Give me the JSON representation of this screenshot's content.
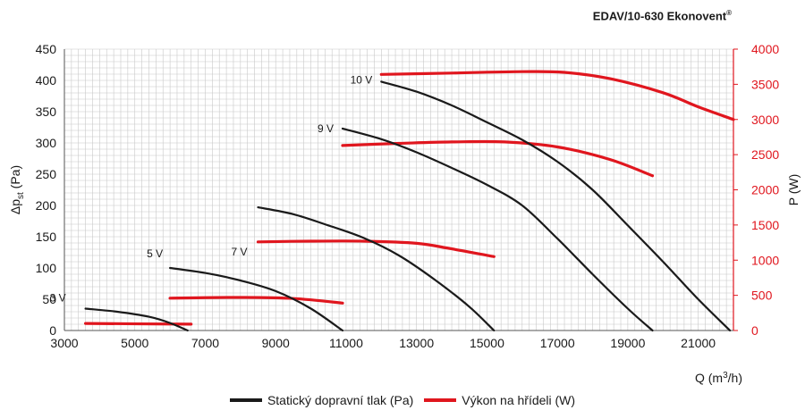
{
  "title": "EDAV/10-630 Ekonovent",
  "title_mark": "®",
  "colors": {
    "pressure": "#1a1a1a",
    "power": "#e0161e",
    "grid": "#c8c8c8",
    "axis_right": "#e0161e"
  },
  "chart_data": {
    "type": "line",
    "title": "EDAV/10-630 Ekonovent®",
    "xlabel_main": "Q (m",
    "xlabel_sup": "3",
    "xlabel_end": "/h)",
    "ylabel_left_main": "Δp",
    "ylabel_left_sub": "st",
    "ylabel_left_end": " (Pa)",
    "ylabel_right": "P (W)",
    "xlim": [
      3000,
      22000
    ],
    "ylim_left": [
      0,
      450
    ],
    "ylim_right": [
      0,
      4000
    ],
    "grid": true,
    "x_ticks": [
      3000,
      5000,
      7000,
      9000,
      11000,
      13000,
      15000,
      17000,
      19000,
      21000
    ],
    "x_tick_labels": [
      "3000",
      "5000",
      "7000",
      "9000",
      "11000",
      "13000",
      "15000",
      "17000",
      "19000",
      "21000"
    ],
    "y_left_ticks": [
      0,
      50,
      100,
      150,
      200,
      250,
      300,
      350,
      400,
      450
    ],
    "y_left_tick_labels": [
      "0",
      "50",
      "100",
      "150",
      "200",
      "250",
      "300",
      "350",
      "400",
      "450"
    ],
    "y_right_ticks": [
      0,
      500,
      1000,
      1500,
      2000,
      2500,
      3000,
      3500,
      4000
    ],
    "y_right_tick_labels": [
      "0",
      "500",
      "1000",
      "1500",
      "2000",
      "2500",
      "3000",
      "3500",
      "4000"
    ],
    "legend": [
      {
        "name": "Statický dopravní tlak (Pa)",
        "color": "#1a1a1a"
      },
      {
        "name": "Výkon na hřídeli (W)",
        "color": "#e0161e"
      }
    ],
    "pressure_curves": [
      {
        "label": "3 V",
        "points": [
          [
            3600,
            35
          ],
          [
            4500,
            30
          ],
          [
            5400,
            22
          ],
          [
            6000,
            12
          ],
          [
            6500,
            0
          ]
        ]
      },
      {
        "label": "5 V",
        "points": [
          [
            6000,
            100
          ],
          [
            7000,
            92
          ],
          [
            8000,
            80
          ],
          [
            9000,
            63
          ],
          [
            10000,
            35
          ],
          [
            10900,
            0
          ]
        ]
      },
      {
        "label": "7 V",
        "points": [
          [
            8500,
            197
          ],
          [
            9500,
            186
          ],
          [
            10500,
            168
          ],
          [
            11500,
            148
          ],
          [
            12500,
            120
          ],
          [
            13500,
            82
          ],
          [
            14500,
            38
          ],
          [
            15200,
            0
          ]
        ]
      },
      {
        "label": "9 V",
        "points": [
          [
            10900,
            323
          ],
          [
            12000,
            306
          ],
          [
            13000,
            285
          ],
          [
            14000,
            260
          ],
          [
            15000,
            233
          ],
          [
            16000,
            200
          ],
          [
            17000,
            147
          ],
          [
            18000,
            90
          ],
          [
            19000,
            35
          ],
          [
            19700,
            0
          ]
        ]
      },
      {
        "label": "10 V",
        "points": [
          [
            12000,
            398
          ],
          [
            13000,
            382
          ],
          [
            14000,
            360
          ],
          [
            15000,
            333
          ],
          [
            16000,
            305
          ],
          [
            17000,
            270
          ],
          [
            18000,
            225
          ],
          [
            19000,
            168
          ],
          [
            20000,
            110
          ],
          [
            21000,
            50
          ],
          [
            21900,
            0
          ]
        ]
      }
    ],
    "power_curves": [
      {
        "label": "3 V",
        "points": [
          [
            3600,
            100
          ],
          [
            6600,
            90
          ]
        ]
      },
      {
        "label": "5 V",
        "points": [
          [
            6000,
            460
          ],
          [
            8000,
            470
          ],
          [
            9500,
            455
          ],
          [
            10900,
            390
          ]
        ]
      },
      {
        "label": "7 V",
        "points": [
          [
            8500,
            1260
          ],
          [
            10000,
            1270
          ],
          [
            11500,
            1270
          ],
          [
            13000,
            1240
          ],
          [
            14000,
            1160
          ],
          [
            15200,
            1050
          ]
        ]
      },
      {
        "label": "9 V",
        "points": [
          [
            10900,
            2630
          ],
          [
            12500,
            2660
          ],
          [
            14000,
            2680
          ],
          [
            15500,
            2680
          ],
          [
            17000,
            2610
          ],
          [
            18500,
            2430
          ],
          [
            19700,
            2200
          ]
        ]
      },
      {
        "label": "10 V",
        "points": [
          [
            12000,
            3640
          ],
          [
            14000,
            3660
          ],
          [
            16000,
            3680
          ],
          [
            17200,
            3670
          ],
          [
            18500,
            3580
          ],
          [
            20000,
            3380
          ],
          [
            21000,
            3180
          ],
          [
            22000,
            3000
          ]
        ]
      }
    ]
  }
}
